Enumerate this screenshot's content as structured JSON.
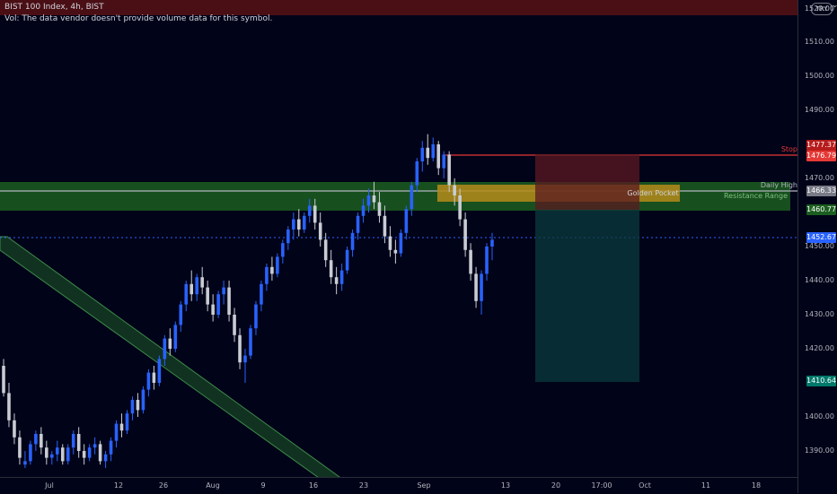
{
  "chart": {
    "symbol_line": "BIST 100 Index, 4h, BIST",
    "volume_note": "Vol: The data vendor doesn't provide volume data for this symbol.",
    "currency": "TRY",
    "currency_chevron": "⌄"
  },
  "colors": {
    "background": "#010318",
    "candle_up": "#2962ff",
    "candle_down": "#c9ccd3",
    "zone_green": "#1b5e20",
    "zone_gold": "#b58a1a",
    "stop_line": "#e53935",
    "target_box": "#0b3b3c",
    "stop_box": "#5b1a22"
  },
  "price_axis": {
    "ticks": [
      "1510.00",
      "1500.00",
      "1490.00",
      "1470.00",
      "1450.00",
      "1440.00",
      "1430.00",
      "1420.00",
      "1400.00",
      "1390.00"
    ],
    "top_tick": "1520.00",
    "tags": {
      "stop_upper": "1477.37",
      "stop_lower": "1476.79",
      "daily_high": "1466.33",
      "resistance": "1460.77",
      "last_price": "1452.67",
      "target": "1410.64"
    }
  },
  "time_axis": {
    "labels": [
      "Jul",
      "12",
      "26",
      "Aug",
      "9",
      "16",
      "23",
      "Sep",
      "13",
      "20",
      "17:00",
      "Oct",
      "11",
      "18"
    ]
  },
  "annotations": {
    "stop": "Stop",
    "daily_high": "Daily High",
    "golden_pocket": "Golden Pocket",
    "resistance_range": "Resistance Range"
  },
  "chart_data": {
    "type": "candlestick",
    "title": "BIST 100 Index, 4h, BIST",
    "ylim": [
      1386,
      1520
    ],
    "levels": {
      "stop": 1477.37,
      "entry_top": 1476.79,
      "daily_high": 1466.33,
      "resistance": 1460.77,
      "last": 1452.67,
      "target": 1410.64
    },
    "candles": [
      [
        1415,
        1417,
        1406,
        1407
      ],
      [
        1407,
        1410,
        1397,
        1399
      ],
      [
        1399,
        1401,
        1392,
        1394
      ],
      [
        1394,
        1396,
        1386,
        1388
      ],
      [
        1386,
        1390,
        1385,
        1387
      ],
      [
        1387,
        1393,
        1386,
        1392
      ],
      [
        1392,
        1396,
        1390,
        1395
      ],
      [
        1395,
        1397,
        1389,
        1391
      ],
      [
        1391,
        1393,
        1386,
        1388
      ],
      [
        1388,
        1390,
        1386,
        1389
      ],
      [
        1389,
        1393,
        1387,
        1391
      ],
      [
        1391,
        1392,
        1386,
        1387
      ],
      [
        1387,
        1392,
        1386,
        1391
      ],
      [
        1391,
        1396,
        1389,
        1395
      ],
      [
        1395,
        1397,
        1388,
        1390
      ],
      [
        1390,
        1392,
        1386,
        1388
      ],
      [
        1388,
        1392,
        1387,
        1391
      ],
      [
        1391,
        1394,
        1389,
        1392
      ],
      [
        1392,
        1393,
        1386,
        1387
      ],
      [
        1387,
        1390,
        1385,
        1389
      ],
      [
        1389,
        1394,
        1387,
        1393
      ],
      [
        1393,
        1399,
        1391,
        1398
      ],
      [
        1398,
        1401,
        1394,
        1396
      ],
      [
        1396,
        1402,
        1395,
        1401
      ],
      [
        1401,
        1406,
        1399,
        1405
      ],
      [
        1405,
        1407,
        1400,
        1402
      ],
      [
        1402,
        1409,
        1401,
        1408
      ],
      [
        1408,
        1414,
        1406,
        1413
      ],
      [
        1413,
        1415,
        1408,
        1410
      ],
      [
        1410,
        1418,
        1409,
        1417
      ],
      [
        1417,
        1424,
        1415,
        1423
      ],
      [
        1423,
        1426,
        1418,
        1420
      ],
      [
        1420,
        1428,
        1419,
        1427
      ],
      [
        1427,
        1434,
        1425,
        1433
      ],
      [
        1433,
        1440,
        1431,
        1439
      ],
      [
        1439,
        1443,
        1434,
        1436
      ],
      [
        1436,
        1442,
        1434,
        1441
      ],
      [
        1441,
        1444,
        1436,
        1438
      ],
      [
        1438,
        1440,
        1431,
        1433
      ],
      [
        1433,
        1436,
        1428,
        1430
      ],
      [
        1430,
        1437,
        1429,
        1436
      ],
      [
        1436,
        1440,
        1433,
        1438
      ],
      [
        1438,
        1440,
        1428,
        1430
      ],
      [
        1430,
        1432,
        1422,
        1424
      ],
      [
        1424,
        1426,
        1414,
        1416
      ],
      [
        1416,
        1420,
        1410,
        1418
      ],
      [
        1418,
        1427,
        1417,
        1426
      ],
      [
        1426,
        1434,
        1424,
        1433
      ],
      [
        1433,
        1440,
        1431,
        1439
      ],
      [
        1439,
        1445,
        1437,
        1444
      ],
      [
        1444,
        1447,
        1440,
        1442
      ],
      [
        1442,
        1448,
        1441,
        1447
      ],
      [
        1447,
        1452,
        1445,
        1451
      ],
      [
        1451,
        1456,
        1449,
        1455
      ],
      [
        1455,
        1460,
        1452,
        1458
      ],
      [
        1458,
        1461,
        1453,
        1455
      ],
      [
        1455,
        1460,
        1454,
        1459
      ],
      [
        1459,
        1464,
        1457,
        1462
      ],
      [
        1462,
        1464,
        1455,
        1457
      ],
      [
        1457,
        1460,
        1450,
        1452
      ],
      [
        1452,
        1454,
        1444,
        1446
      ],
      [
        1446,
        1449,
        1439,
        1441
      ],
      [
        1441,
        1444,
        1436,
        1439
      ],
      [
        1439,
        1445,
        1437,
        1443
      ],
      [
        1443,
        1450,
        1442,
        1449
      ],
      [
        1449,
        1455,
        1447,
        1454
      ],
      [
        1454,
        1460,
        1452,
        1459
      ],
      [
        1459,
        1464,
        1457,
        1462
      ],
      [
        1462,
        1467,
        1460,
        1465
      ],
      [
        1465,
        1469,
        1461,
        1463
      ],
      [
        1463,
        1466,
        1457,
        1459
      ],
      [
        1459,
        1462,
        1451,
        1453
      ],
      [
        1453,
        1456,
        1447,
        1449
      ],
      [
        1449,
        1452,
        1445,
        1448
      ],
      [
        1448,
        1455,
        1447,
        1454
      ],
      [
        1454,
        1462,
        1452,
        1461
      ],
      [
        1461,
        1469,
        1459,
        1468
      ],
      [
        1468,
        1476,
        1466,
        1475
      ],
      [
        1475,
        1481,
        1472,
        1479
      ],
      [
        1479,
        1483,
        1474,
        1476
      ],
      [
        1476,
        1482,
        1475,
        1480
      ],
      [
        1480,
        1481,
        1471,
        1473
      ],
      [
        1473,
        1478,
        1470,
        1477
      ],
      [
        1477,
        1478,
        1466,
        1468
      ],
      [
        1468,
        1470,
        1462,
        1465
      ],
      [
        1465,
        1467,
        1456,
        1458
      ],
      [
        1458,
        1460,
        1447,
        1449
      ],
      [
        1449,
        1451,
        1440,
        1442
      ],
      [
        1442,
        1444,
        1432,
        1434
      ],
      [
        1434,
        1443,
        1430,
        1442
      ],
      [
        1442,
        1451,
        1440,
        1450
      ],
      [
        1450,
        1454,
        1446,
        1452
      ]
    ]
  }
}
